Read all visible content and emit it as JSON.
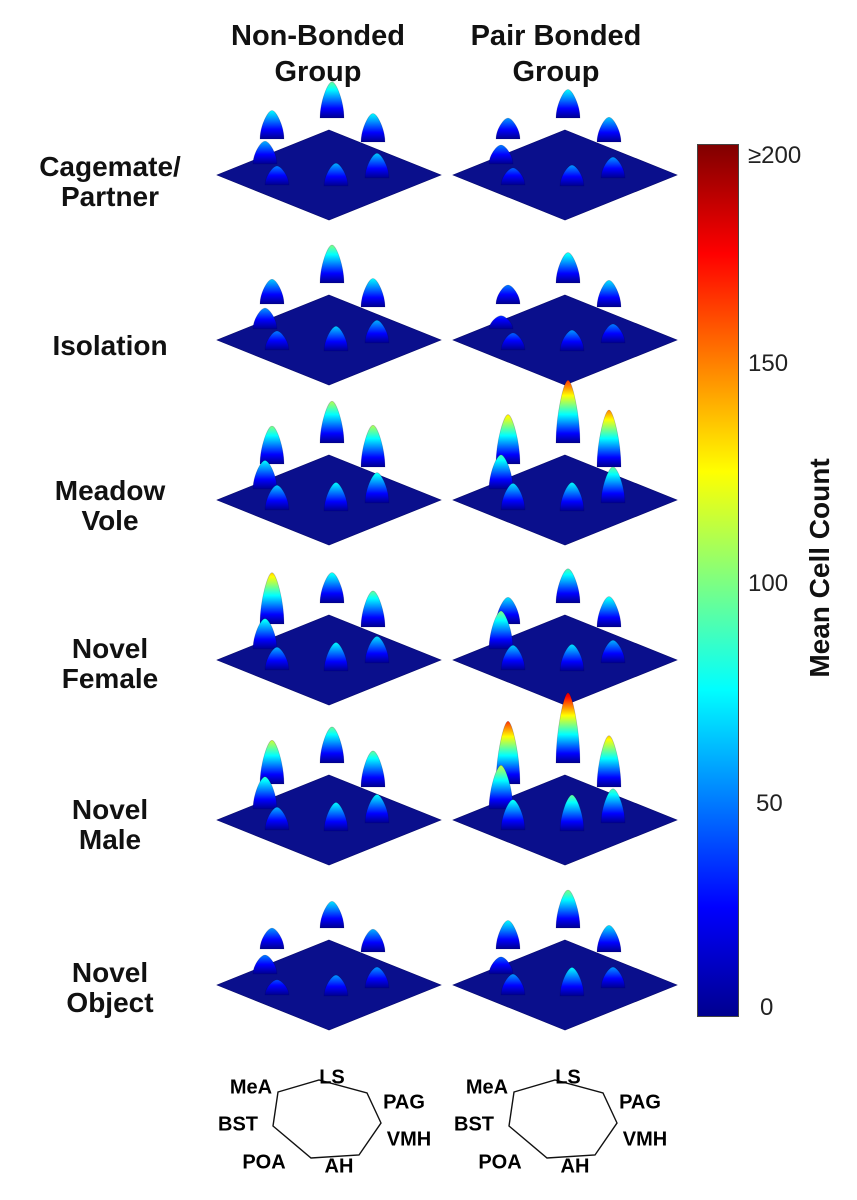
{
  "chart_data": {
    "type": "surface-3d",
    "column_headers": [
      "Non-Bonded\nGroup",
      "Pair Bonded\nGroup"
    ],
    "row_labels": [
      "Cagemate/\nPartner",
      "Isolation",
      "Meadow\nVole",
      "Novel\nFemale",
      "Novel\nMale",
      "Novel\nObject"
    ],
    "regions": [
      "LS",
      "PAG",
      "VMH",
      "AH",
      "POA",
      "BST",
      "MeA"
    ],
    "values": {
      "Non-Bonded Group": [
        [
          95,
          75,
          65,
          60,
          50,
          60,
          75
        ],
        [
          100,
          75,
          60,
          65,
          50,
          55,
          65
        ],
        [
          110,
          110,
          80,
          75,
          65,
          75,
          100
        ],
        [
          80,
          95,
          70,
          75,
          60,
          80,
          135
        ],
        [
          95,
          95,
          75,
          75,
          60,
          85,
          115
        ],
        [
          70,
          60,
          55,
          55,
          40,
          50,
          55
        ]
      ],
      "Pair Bonded Group": [
        [
          75,
          65,
          55,
          55,
          45,
          50,
          55
        ],
        [
          80,
          70,
          50,
          55,
          45,
          35,
          50
        ],
        [
          165,
          150,
          95,
          75,
          70,
          90,
          130
        ],
        [
          90,
          80,
          60,
          70,
          65,
          100,
          70
        ],
        [
          185,
          135,
          90,
          95,
          80,
          115,
          165
        ],
        [
          100,
          70,
          55,
          75,
          55,
          45,
          75
        ]
      ]
    },
    "colorbar": {
      "label": "Mean Cell Count",
      "min": 0,
      "max": 200,
      "ticks": [
        {
          "value": 0,
          "label": "0"
        },
        {
          "value": 50,
          "label": "50"
        },
        {
          "value": 100,
          "label": "100"
        },
        {
          "value": 150,
          "label": "150"
        },
        {
          "value": 200,
          "label": "≥200"
        }
      ],
      "colormap": "jet"
    }
  }
}
